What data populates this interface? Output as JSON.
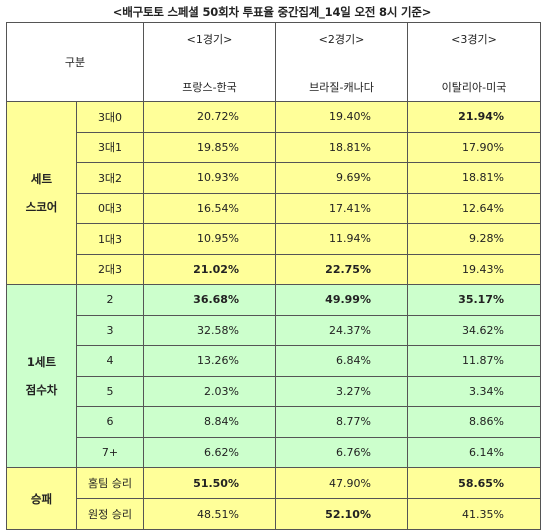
{
  "title": "<배구토토 스페셜 50회차 투표율 중간집계_14일 오전 8시 기준>",
  "header": {
    "gubun": "구분",
    "games": [
      {
        "round": "<1경기>",
        "teams": "프랑스-한국"
      },
      {
        "round": "<2경기>",
        "teams": "브라질-캐나다"
      },
      {
        "round": "<3경기>",
        "teams": "이탈리아-미국"
      }
    ]
  },
  "sections": [
    {
      "label": [
        "세트",
        "스코어"
      ],
      "color": "#ffff99",
      "rows": [
        {
          "label": "3대0",
          "values": [
            "20.72%",
            "19.40%",
            "21.94%"
          ],
          "bold": [
            false,
            false,
            true
          ]
        },
        {
          "label": "3대1",
          "values": [
            "19.85%",
            "18.81%",
            "17.90%"
          ],
          "bold": [
            false,
            false,
            false
          ]
        },
        {
          "label": "3대2",
          "values": [
            "10.93%",
            "9.69%",
            "18.81%"
          ],
          "bold": [
            false,
            false,
            false
          ]
        },
        {
          "label": "0대3",
          "values": [
            "16.54%",
            "17.41%",
            "12.64%"
          ],
          "bold": [
            false,
            false,
            false
          ]
        },
        {
          "label": "1대3",
          "values": [
            "10.95%",
            "11.94%",
            "9.28%"
          ],
          "bold": [
            false,
            false,
            false
          ]
        },
        {
          "label": "2대3",
          "values": [
            "21.02%",
            "22.75%",
            "19.43%"
          ],
          "bold": [
            true,
            true,
            false
          ]
        }
      ]
    },
    {
      "label": [
        "1세트",
        "점수차"
      ],
      "color": "#ccffcc",
      "rows": [
        {
          "label": "2",
          "values": [
            "36.68%",
            "49.99%",
            "35.17%"
          ],
          "bold": [
            true,
            true,
            true
          ]
        },
        {
          "label": "3",
          "values": [
            "32.58%",
            "24.37%",
            "34.62%"
          ],
          "bold": [
            false,
            false,
            false
          ]
        },
        {
          "label": "4",
          "values": [
            "13.26%",
            "6.84%",
            "11.87%"
          ],
          "bold": [
            false,
            false,
            false
          ]
        },
        {
          "label": "5",
          "values": [
            "2.03%",
            "3.27%",
            "3.34%"
          ],
          "bold": [
            false,
            false,
            false
          ]
        },
        {
          "label": "6",
          "values": [
            "8.84%",
            "8.77%",
            "8.86%"
          ],
          "bold": [
            false,
            false,
            false
          ]
        },
        {
          "label": "7+",
          "values": [
            "6.62%",
            "6.76%",
            "6.14%"
          ],
          "bold": [
            false,
            false,
            false
          ]
        }
      ]
    },
    {
      "label": [
        "승패"
      ],
      "color": "#ffff99",
      "rows": [
        {
          "label": "홈팀 승리",
          "values": [
            "51.50%",
            "47.90%",
            "58.65%"
          ],
          "bold": [
            true,
            false,
            true
          ]
        },
        {
          "label": "원정 승리",
          "values": [
            "48.51%",
            "52.10%",
            "41.35%"
          ],
          "bold": [
            false,
            true,
            false
          ]
        }
      ]
    }
  ]
}
